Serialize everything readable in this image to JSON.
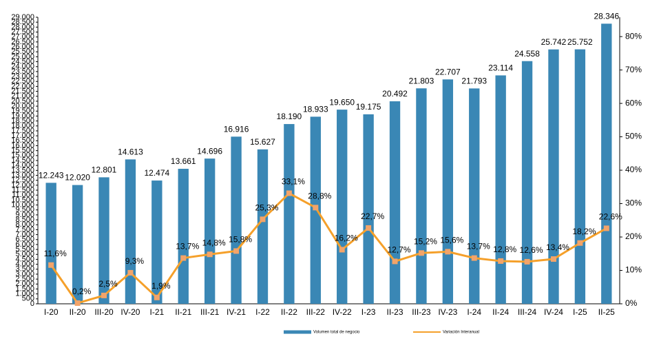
{
  "chart_data": {
    "type": "bar",
    "categories": [
      "I-20",
      "II-20",
      "III-20",
      "IV-20",
      "I-21",
      "II-21",
      "III-21",
      "IV-21",
      "I-22",
      "II-22",
      "III-22",
      "IV-22",
      "I-23",
      "II-23",
      "III-23",
      "IV-23",
      "I-24",
      "II-24",
      "III-24",
      "IV-24",
      "I-25",
      "II-25"
    ],
    "series": [
      {
        "name": "Volumen total de negocio",
        "type": "bar",
        "color": "#3a87b5",
        "values": [
          12243,
          12020,
          12801,
          14613,
          12474,
          13661,
          14696,
          16916,
          15627,
          18190,
          18933,
          19650,
          19175,
          20492,
          21803,
          22707,
          21793,
          23114,
          24558,
          25742,
          25752,
          28346
        ],
        "value_labels": [
          "12.243",
          "12.020",
          "12.801",
          "14.613",
          "12.474",
          "13.661",
          "14.696",
          "16.916",
          "15.627",
          "18.190",
          "18.933",
          "19.650",
          "19.175",
          "20.492",
          "21.803",
          "22.707",
          "21.793",
          "23.114",
          "24.558",
          "25.742",
          "25.752",
          "28.346"
        ]
      },
      {
        "name": "Variación Interanual",
        "type": "line",
        "axis": "y2",
        "color": "#f5a02a",
        "marker_color": "#f2a46a",
        "values": [
          11.6,
          0.2,
          2.5,
          9.3,
          1.9,
          13.7,
          14.8,
          15.8,
          25.3,
          33.1,
          28.8,
          16.2,
          22.7,
          12.7,
          15.2,
          15.6,
          13.7,
          12.8,
          12.6,
          13.4,
          18.2,
          22.6
        ],
        "value_labels": [
          "11,6%",
          "0,2%",
          "2,5%",
          "9,3%",
          "1,9%",
          "13,7%",
          "14,8%",
          "15,8%",
          "25,3%",
          "33,1%",
          "28,8%",
          "16,2%",
          "22,7%",
          "12,7%",
          "15,2%",
          "15,6%",
          "13,7%",
          "12,8%",
          "12,6%",
          "13,4%",
          "18,2%",
          "22,6%"
        ]
      }
    ],
    "ylim": [
      0,
      29000
    ],
    "yticks": [
      0,
      500,
      {
        "value": 1000,
        "label": "1.000"
      },
      {
        "value": 1500,
        "label": "1.500"
      },
      {
        "value": 2000,
        "label": "2.000"
      },
      {
        "value": 2500,
        "label": "2.500"
      },
      {
        "value": 3000,
        "label": "3.000"
      },
      {
        "value": 3500,
        "label": "3.500"
      },
      {
        "value": 4000,
        "label": "4.000"
      },
      {
        "value": 4500,
        "label": "4.500"
      },
      {
        "value": 5000,
        "label": "5.000"
      },
      {
        "value": 5500,
        "label": "5.500"
      },
      {
        "value": 6000,
        "label": "6.000"
      },
      {
        "value": 6500,
        "label": "6.500"
      },
      {
        "value": 7000,
        "label": "7.000"
      },
      {
        "value": 7500,
        "label": "7.500"
      },
      {
        "value": 8000,
        "label": "8.000"
      },
      {
        "value": 8500,
        "label": "8.500"
      },
      {
        "value": 9000,
        "label": "9.000"
      },
      {
        "value": 9500,
        "label": "9.500"
      },
      {
        "value": 10000,
        "label": "10.000"
      },
      {
        "value": 10500,
        "label": "10.500"
      },
      {
        "value": 11000,
        "label": "11.000"
      },
      {
        "value": 11500,
        "label": "11.500"
      },
      {
        "value": 12000,
        "label": "12.000"
      },
      {
        "value": 12500,
        "label": "12.500"
      },
      {
        "value": 13000,
        "label": "13.000"
      },
      {
        "value": 13500,
        "label": "13.500"
      },
      {
        "value": 14000,
        "label": "14.000"
      },
      {
        "value": 14500,
        "label": "14.500"
      },
      {
        "value": 15000,
        "label": "15.000"
      },
      {
        "value": 15500,
        "label": "15.500"
      },
      {
        "value": 16000,
        "label": "16.000"
      },
      {
        "value": 16500,
        "label": "16.500"
      },
      {
        "value": 17000,
        "label": "17.000"
      },
      {
        "value": 17500,
        "label": "17.500"
      },
      {
        "value": 18000,
        "label": "18.000"
      },
      {
        "value": 18500,
        "label": "18.500"
      },
      {
        "value": 19000,
        "label": "19.000"
      },
      {
        "value": 19500,
        "label": "19.500"
      },
      {
        "value": 20000,
        "label": "20.000"
      },
      {
        "value": 20500,
        "label": "20.500"
      },
      {
        "value": 21000,
        "label": "21.000"
      },
      {
        "value": 21500,
        "label": "21.500"
      },
      {
        "value": 22000,
        "label": "22.000"
      },
      {
        "value": 22500,
        "label": "22.500"
      },
      {
        "value": 23000,
        "label": "23.000"
      },
      {
        "value": 23500,
        "label": "23.500"
      },
      {
        "value": 24000,
        "label": "24.000"
      },
      {
        "value": 24500,
        "label": "24.500"
      },
      {
        "value": 25000,
        "label": "25.000"
      },
      {
        "value": 25500,
        "label": "25.500"
      },
      {
        "value": 26000,
        "label": "26.000"
      },
      {
        "value": 26500,
        "label": "26.500"
      },
      {
        "value": 27000,
        "label": "27.000"
      },
      {
        "value": 27500,
        "label": "27.500"
      },
      {
        "value": 28000,
        "label": "28.000"
      },
      {
        "value": 28500,
        "label": "28.500"
      },
      {
        "value": 29000,
        "label": "29.000"
      }
    ],
    "y2lim": [
      0,
      85.8
    ],
    "y2ticks": [
      {
        "value": 0,
        "label": "0%"
      },
      {
        "value": 10,
        "label": "10%"
      },
      {
        "value": 20,
        "label": "20%"
      },
      {
        "value": 30,
        "label": "30%"
      },
      {
        "value": 40,
        "label": "40%"
      },
      {
        "value": 50,
        "label": "50%"
      },
      {
        "value": 60,
        "label": "60%"
      },
      {
        "value": 70,
        "label": "70%"
      },
      {
        "value": 80,
        "label": "80%"
      }
    ],
    "grid": false,
    "legend": "bottom"
  }
}
